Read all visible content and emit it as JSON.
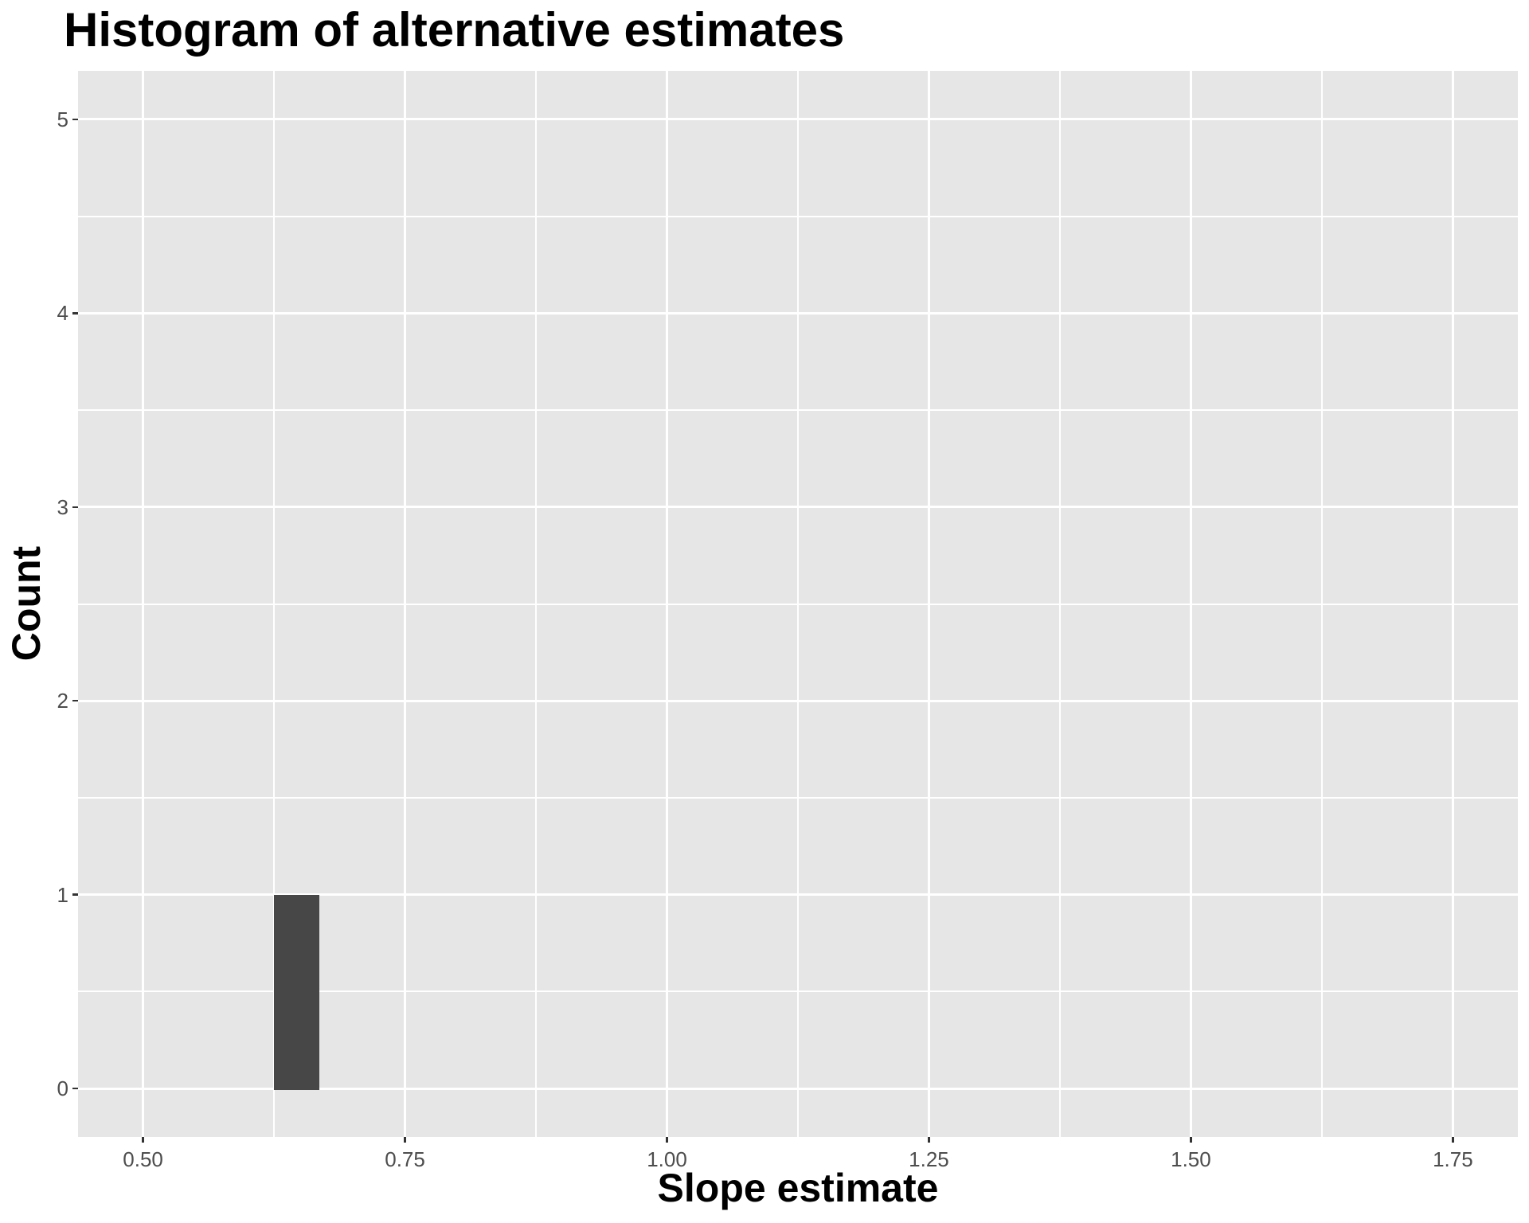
{
  "title": "Histogram of alternative estimates",
  "x_axis": {
    "label": "Slope estimate",
    "tick_labels": [
      "0.50",
      "0.75",
      "1.00",
      "1.25",
      "1.50",
      "1.75"
    ]
  },
  "y_axis": {
    "label": "Count",
    "tick_labels": [
      "0",
      "1",
      "2",
      "3",
      "4",
      "5"
    ]
  },
  "chart_data": {
    "type": "bar",
    "subtype": "histogram",
    "title": "Histogram of alternative estimates",
    "xlabel": "Slope estimate",
    "ylabel": "Count",
    "bars": [
      {
        "x_start": 0.625,
        "x_end": 0.668,
        "count": 1
      }
    ],
    "x_ticks": {
      "values": [
        0.5,
        0.75,
        1.0,
        1.25,
        1.5,
        1.75
      ],
      "labels": [
        "0.50",
        "0.75",
        "1.00",
        "1.25",
        "1.50",
        "1.75"
      ]
    },
    "y_ticks": {
      "values": [
        0,
        1,
        2,
        3,
        4,
        5
      ],
      "labels": [
        "0",
        "1",
        "2",
        "3",
        "4",
        "5"
      ]
    },
    "x_minor_gridlines": [
      0.625,
      0.875,
      1.125,
      1.375,
      1.625
    ],
    "y_minor_gridlines": [
      0.5,
      1.5,
      2.5,
      3.5,
      4.5
    ],
    "xlim": [
      0.438,
      1.812
    ],
    "ylim": [
      -0.25,
      5.25
    ],
    "grid": "white major and minor gridlines on grey panel",
    "legend_position": "none"
  },
  "style": {
    "figure_bg": "#FFFFFF",
    "panel_bg": "#E6E6E6",
    "grid_color": "#FFFFFF",
    "bar_fill": "#474747",
    "tick_mark_color": "#333333",
    "tick_label_color": "#4D4D4D",
    "title_color": "#000000",
    "axis_title_color": "#000000"
  }
}
